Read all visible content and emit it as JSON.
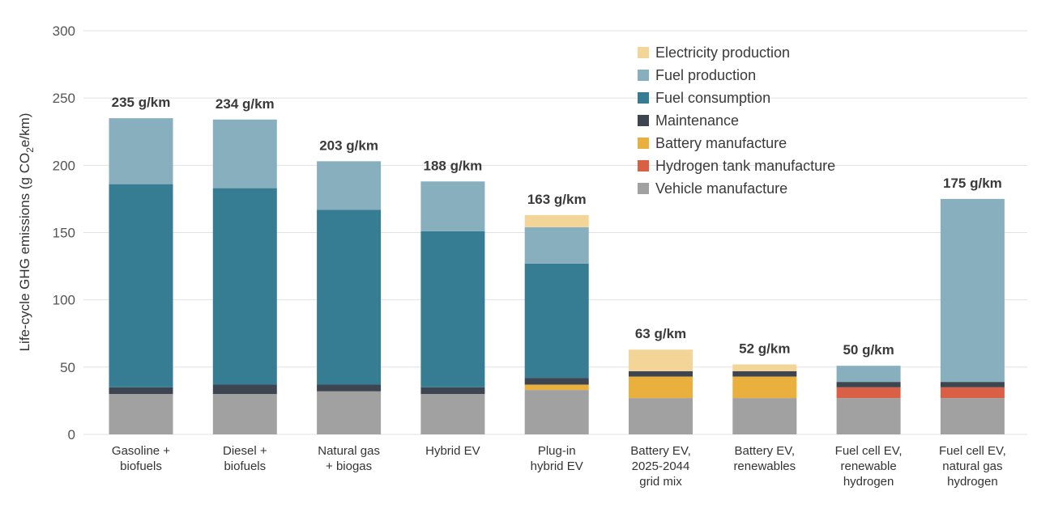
{
  "chart_data": {
    "type": "bar",
    "stacked": true,
    "title": "",
    "xlabel": "",
    "ylabel": "Life-cycle GHG emissions (g CO2e/km)",
    "ylabel_parts": {
      "before": "Life-cycle GHG emissions (g CO",
      "sub": "2",
      "after": "e/km)"
    },
    "ylim": [
      0,
      300
    ],
    "yticks": [
      0,
      50,
      100,
      150,
      200,
      250,
      300
    ],
    "grid": true,
    "legend_position": "top-right",
    "categories": [
      [
        "Gasoline +",
        "biofuels"
      ],
      [
        "Diesel +",
        "biofuels"
      ],
      [
        "Natural gas",
        "+ biogas"
      ],
      [
        "Hybrid EV"
      ],
      [
        "Plug-in",
        "hybrid EV"
      ],
      [
        "Battery EV,",
        "2025-2044",
        "grid mix"
      ],
      [
        "Battery EV,",
        "renewables"
      ],
      [
        "Fuel cell EV,",
        "renewable",
        "hydrogen"
      ],
      [
        "Fuel cell EV,",
        "natural gas",
        "hydrogen"
      ]
    ],
    "totals": [
      "235 g/km",
      "234 g/km",
      "203 g/km",
      "188 g/km",
      "163 g/km",
      "63 g/km",
      "52 g/km",
      "50 g/km",
      "175 g/km"
    ],
    "series": [
      {
        "name": "Vehicle manufacture",
        "color": "#a1a1a1",
        "values": [
          30,
          30,
          32,
          30,
          33,
          27,
          27,
          27,
          27
        ]
      },
      {
        "name": "Hydrogen tank manufacture",
        "color": "#d95f45",
        "values": [
          0,
          0,
          0,
          0,
          0,
          0,
          0,
          8,
          8
        ]
      },
      {
        "name": "Battery manufacture",
        "color": "#e9b03e",
        "values": [
          0,
          0,
          0,
          0,
          4,
          16,
          16,
          0,
          0
        ]
      },
      {
        "name": "Maintenance",
        "color": "#3d4550",
        "values": [
          5,
          7,
          5,
          5,
          5,
          4,
          4,
          4,
          4
        ]
      },
      {
        "name": "Fuel consumption",
        "color": "#367c92",
        "values": [
          151,
          146,
          130,
          116,
          85,
          0,
          0,
          0,
          0
        ]
      },
      {
        "name": "Fuel production",
        "color": "#88afbe",
        "values": [
          49,
          51,
          36,
          37,
          27,
          0,
          0,
          12,
          136
        ]
      },
      {
        "name": "Electricity production",
        "color": "#f3d597",
        "values": [
          0,
          0,
          0,
          0,
          9,
          16,
          5,
          0,
          0
        ]
      }
    ],
    "legend_order": [
      "Electricity production",
      "Fuel production",
      "Fuel consumption",
      "Maintenance",
      "Battery manufacture",
      "Hydrogen tank manufacture",
      "Vehicle manufacture"
    ],
    "gridline_color": "#e1e1e1"
  }
}
